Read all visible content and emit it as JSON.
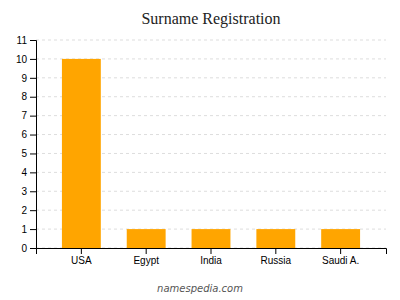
{
  "chart_data": {
    "type": "bar",
    "title": "Surname Registration",
    "categories": [
      "USA",
      "Egypt",
      "India",
      "Russia",
      "Saudi A."
    ],
    "values": [
      10,
      1,
      1,
      1,
      1
    ],
    "color": "#FFA500",
    "ylim": [
      0,
      11
    ],
    "yticks": [
      0,
      1,
      2,
      3,
      4,
      5,
      6,
      7,
      8,
      9,
      10,
      11
    ],
    "grid": true,
    "annotations": [
      "namespedia.com"
    ]
  }
}
